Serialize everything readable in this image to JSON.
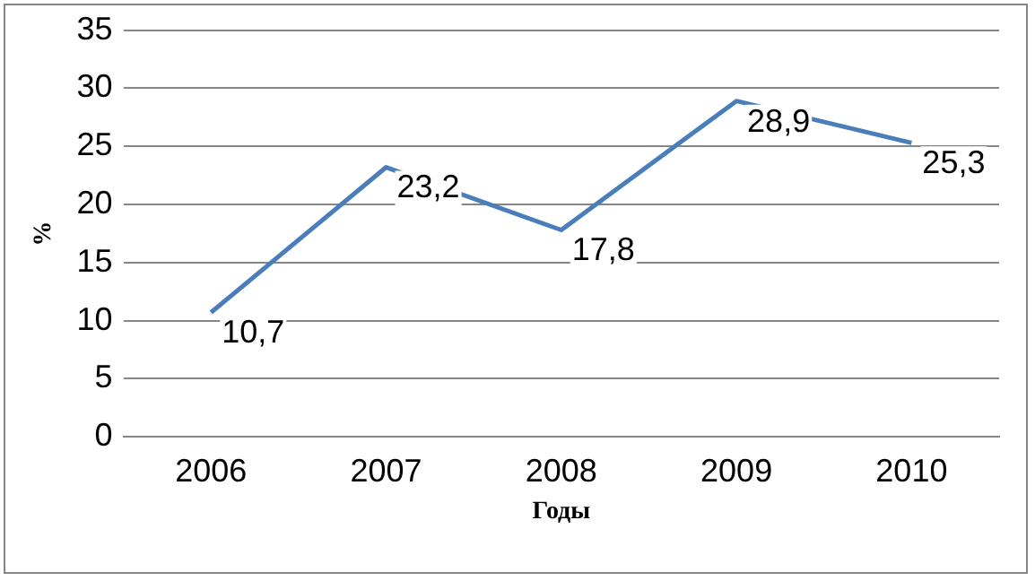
{
  "chart_data": {
    "type": "line",
    "xlabel": "Годы",
    "ylabel": "%",
    "categories": [
      "2006",
      "2007",
      "2008",
      "2009",
      "2010"
    ],
    "series": [
      {
        "color": "#4a7ebb",
        "values": [
          10.7,
          23.2,
          17.8,
          28.9,
          25.3
        ],
        "value_labels": [
          "10,7",
          "23,2",
          "17,8",
          "28,9",
          "25,3"
        ]
      }
    ],
    "ylim": [
      0,
      35
    ],
    "yticks": [
      0,
      5,
      10,
      15,
      20,
      25,
      30,
      35
    ],
    "grid": "y",
    "legend": false,
    "marker": "none",
    "line_style": "solid"
  }
}
